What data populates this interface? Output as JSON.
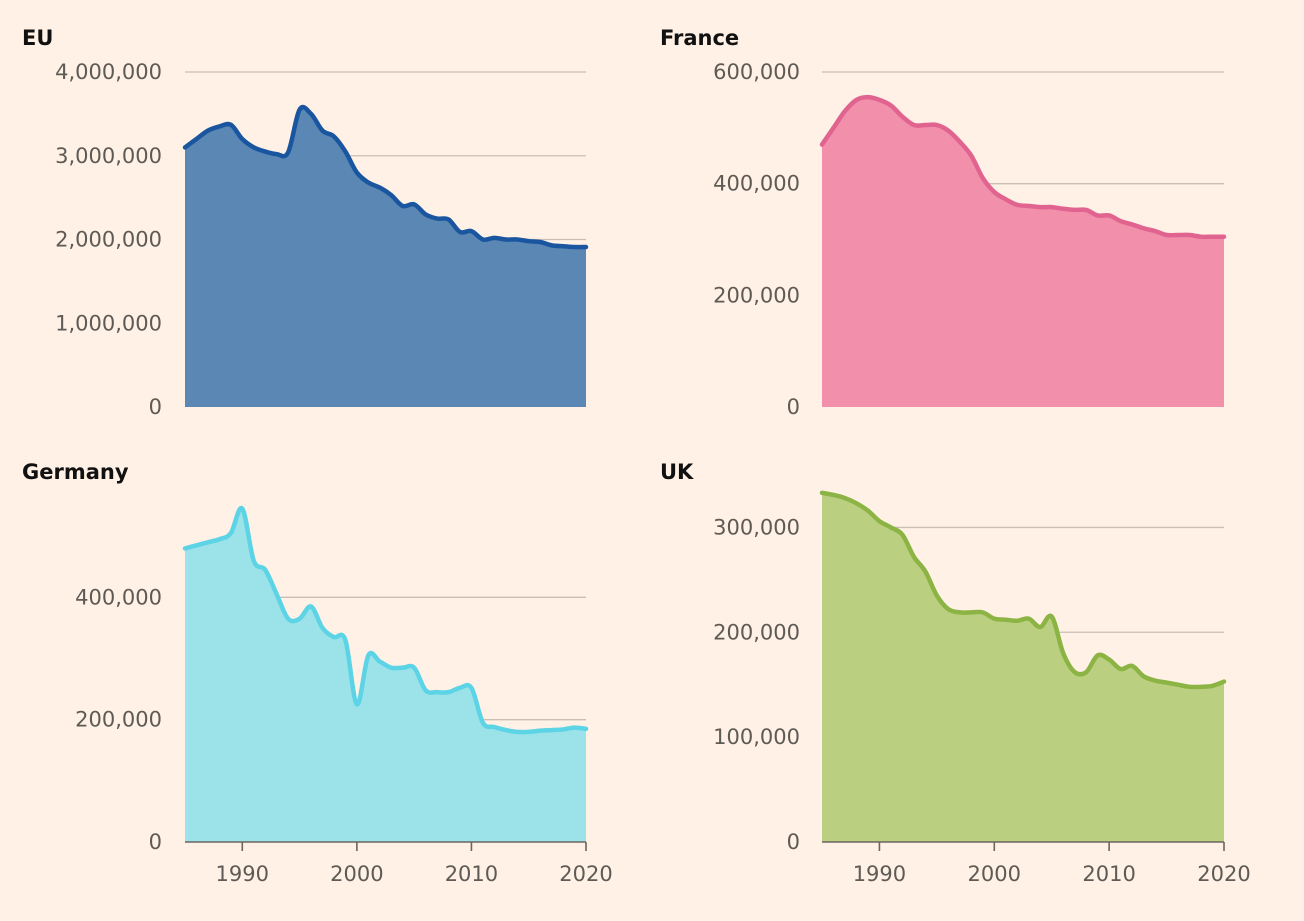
{
  "chart_data": [
    {
      "type": "area",
      "title": "EU",
      "color": "#1a56a0",
      "fill": "#5a87b3",
      "ylim": [
        0,
        4000000
      ],
      "yticks": [
        0,
        1000000,
        2000000,
        3000000,
        4000000
      ],
      "ytick_labels": [
        "0",
        "1,000,000",
        "2,000,000",
        "3,000,000",
        "4,000,000"
      ],
      "xlim": [
        1985,
        2020
      ],
      "xticks": [],
      "xtick_labels": [],
      "x": [
        1985,
        1986,
        1987,
        1988,
        1989,
        1990,
        1991,
        1992,
        1993,
        1994,
        1995,
        1996,
        1997,
        1998,
        1999,
        2000,
        2001,
        2002,
        2003,
        2004,
        2005,
        2006,
        2007,
        2008,
        2009,
        2010,
        2011,
        2012,
        2013,
        2014,
        2015,
        2016,
        2017,
        2018,
        2019,
        2020
      ],
      "values": [
        3100000,
        3200000,
        3300000,
        3350000,
        3370000,
        3200000,
        3100000,
        3050000,
        3020000,
        3040000,
        3550000,
        3500000,
        3300000,
        3230000,
        3050000,
        2800000,
        2680000,
        2620000,
        2530000,
        2400000,
        2420000,
        2300000,
        2250000,
        2240000,
        2090000,
        2100000,
        2000000,
        2020000,
        2000000,
        2000000,
        1980000,
        1970000,
        1930000,
        1920000,
        1910000,
        1910000
      ]
    },
    {
      "type": "area",
      "title": "France",
      "color": "#e0648f",
      "fill": "#f28fab",
      "ylim": [
        0,
        600000
      ],
      "yticks": [
        0,
        200000,
        400000,
        600000
      ],
      "ytick_labels": [
        "0",
        "200,000",
        "400,000",
        "600,000"
      ],
      "xlim": [
        1985,
        2020
      ],
      "xticks": [],
      "xtick_labels": [],
      "x": [
        1985,
        1986,
        1987,
        1988,
        1989,
        1990,
        1991,
        1992,
        1993,
        1994,
        1995,
        1996,
        1997,
        1998,
        1999,
        2000,
        2001,
        2002,
        2003,
        2004,
        2005,
        2006,
        2007,
        2008,
        2009,
        2010,
        2011,
        2012,
        2013,
        2014,
        2015,
        2016,
        2017,
        2018,
        2019,
        2020
      ],
      "values": [
        470000,
        500000,
        530000,
        550000,
        555000,
        550000,
        540000,
        520000,
        505000,
        505000,
        505000,
        495000,
        475000,
        450000,
        410000,
        385000,
        372000,
        362000,
        360000,
        358000,
        358000,
        355000,
        353000,
        353000,
        343000,
        343000,
        333000,
        327000,
        320000,
        315000,
        308000,
        308000,
        308000,
        305000,
        305000,
        305000
      ]
    },
    {
      "type": "area",
      "title": "Germany",
      "color": "#5dd3e6",
      "fill": "#9be3e9",
      "ylim": [
        0,
        600000
      ],
      "yticks": [
        0,
        200000,
        400000
      ],
      "ytick_labels": [
        "0",
        "200,000",
        "400,000"
      ],
      "xlim": [
        1985,
        2020
      ],
      "xticks": [
        1990,
        2000,
        2010,
        2020
      ],
      "xtick_labels": [
        "1990",
        "2000",
        "2010",
        "2020"
      ],
      "x": [
        1985,
        1986,
        1987,
        1988,
        1989,
        1990,
        1991,
        1992,
        1993,
        1994,
        1995,
        1996,
        1997,
        1998,
        1999,
        2000,
        2001,
        2002,
        2003,
        2004,
        2005,
        2006,
        2007,
        2008,
        2009,
        2010,
        2011,
        2012,
        2013,
        2014,
        2015,
        2016,
        2017,
        2018,
        2019,
        2020
      ],
      "values": [
        480000,
        485000,
        490000,
        495000,
        505000,
        545000,
        460000,
        445000,
        405000,
        365000,
        365000,
        385000,
        350000,
        335000,
        330000,
        225000,
        305000,
        295000,
        285000,
        285000,
        285000,
        248000,
        245000,
        245000,
        252000,
        252000,
        195000,
        188000,
        183000,
        180000,
        180000,
        182000,
        183000,
        184000,
        187000,
        185000
      ]
    },
    {
      "type": "area",
      "title": "UK",
      "color": "#8cb444",
      "fill": "#bacf7f",
      "ylim": [
        0,
        350000
      ],
      "yticks": [
        0,
        100000,
        200000,
        300000
      ],
      "ytick_labels": [
        "0",
        "100,000",
        "200,000",
        "300,000"
      ],
      "xlim": [
        1985,
        2020
      ],
      "xticks": [
        1990,
        2000,
        2010,
        2020
      ],
      "xtick_labels": [
        "1990",
        "2000",
        "2010",
        "2020"
      ],
      "x": [
        1985,
        1986,
        1987,
        1988,
        1989,
        1990,
        1991,
        1992,
        1993,
        1994,
        1995,
        1996,
        1997,
        1998,
        1999,
        2000,
        2001,
        2002,
        2003,
        2004,
        2005,
        2006,
        2007,
        2008,
        2009,
        2010,
        2011,
        2012,
        2013,
        2014,
        2015,
        2016,
        2017,
        2018,
        2019,
        2020
      ],
      "values": [
        333000,
        331000,
        328000,
        323000,
        316000,
        306000,
        300000,
        293000,
        272000,
        258000,
        235000,
        222000,
        219000,
        219000,
        219000,
        213000,
        212000,
        211000,
        213000,
        205000,
        215000,
        180000,
        162000,
        162000,
        178000,
        174000,
        165000,
        168000,
        158000,
        154000,
        152000,
        150000,
        148000,
        148000,
        149000,
        153000
      ]
    }
  ]
}
